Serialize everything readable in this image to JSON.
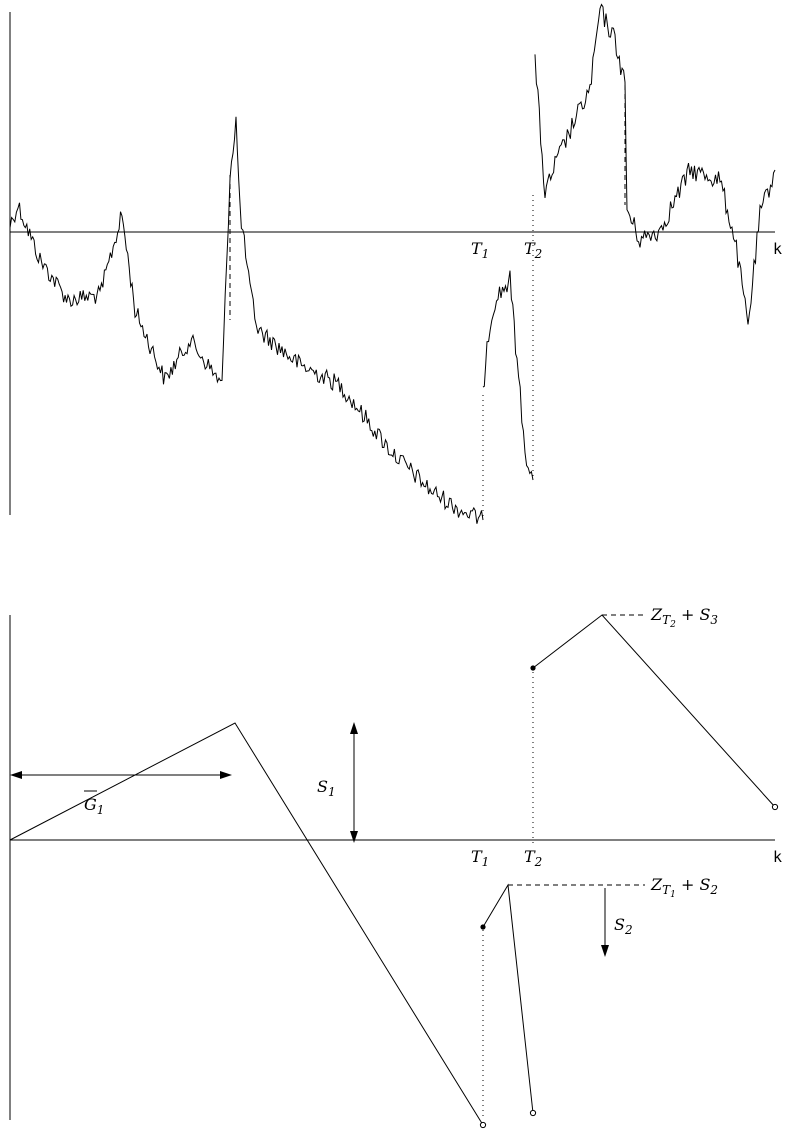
{
  "top_panel": {
    "x_label": "k",
    "t1": {
      "letter": "T",
      "sub": "1"
    },
    "t2": {
      "letter": "T",
      "sub": "2"
    }
  },
  "bottom_panel": {
    "x_label": "k",
    "t1": {
      "letter": "T",
      "sub": "1"
    },
    "t2": {
      "letter": "T",
      "sub": "2"
    },
    "s1": {
      "letter": "S",
      "sub": "1"
    },
    "s2": {
      "letter": "S",
      "sub": "2"
    },
    "g1": {
      "letter": "G",
      "sub": "1"
    },
    "z_t1_s2": {
      "z": "Z",
      "t": "T",
      "tsub": "1",
      "plus": " + ",
      "s": "S",
      "ssub": "2"
    },
    "z_t2_s3": {
      "z": "Z",
      "t": "T",
      "tsub": "2",
      "plus": " + ",
      "s": "S",
      "ssub": "3"
    }
  },
  "chart_data": {
    "type": "line",
    "xlabel": "k",
    "markers": [
      "T1",
      "T2"
    ],
    "path_segments": [
      {
        "name": "segment-1",
        "points": [
          [
            0,
            0
          ],
          [
            230,
            117
          ],
          [
            480,
            -326
          ]
        ],
        "end": "open"
      },
      {
        "name": "segment-2",
        "points": [
          [
            480,
            -122
          ],
          [
            507,
            -44
          ],
          [
            533,
            -293
          ]
        ],
        "start": "closed",
        "end": "open"
      },
      {
        "name": "segment-3",
        "points": [
          [
            533,
            173
          ],
          [
            602,
            225
          ],
          [
            775,
            33
          ]
        ],
        "start": "closed",
        "end": "open"
      }
    ],
    "annotations": [
      "S1",
      "S2",
      "G1",
      "Z_T1 + S2",
      "Z_T2 + S3"
    ]
  },
  "colors": {
    "ink": "#000000",
    "background": "#ffffff"
  }
}
